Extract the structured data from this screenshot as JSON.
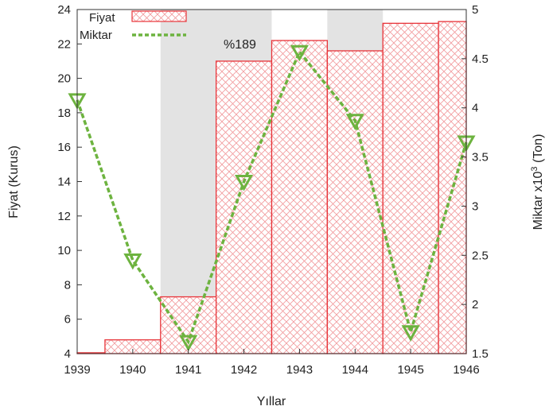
{
  "chart_data": {
    "type": "bar",
    "xlabel": "Yıllar",
    "ylabel": "Fiyat (Kurus)",
    "y2label_prefix": "Miktar x10",
    "y2label_sup": "3",
    "y2label_suffix": " (Ton)",
    "x_ticks": [
      "1939",
      "1940",
      "1941",
      "1942",
      "1943",
      "1944",
      "1945",
      "1946"
    ],
    "ylim": [
      4,
      24
    ],
    "y_ticks": [
      "4",
      "6",
      "8",
      "10",
      "12",
      "14",
      "16",
      "18",
      "20",
      "22",
      "24"
    ],
    "y2lim": [
      1.5,
      5
    ],
    "y2_ticks": [
      "1.5",
      "2",
      "2.5",
      "3",
      "3.5",
      "4",
      "4.5",
      "5"
    ],
    "grid": false,
    "legend_position": "top-left",
    "shaded_x_ranges": [
      [
        1940.5,
        1942.5
      ],
      [
        1943.5,
        1944.5
      ]
    ],
    "annotation": {
      "text": "%189",
      "x": 1942.45,
      "y": 22.5
    },
    "series": [
      {
        "name": "Fiyat",
        "type": "bar",
        "color": "#e8343a",
        "x_start": [
          1939,
          1939.5,
          1940.5,
          1941.5,
          1942.5,
          1943.5,
          1944.5,
          1945.5
        ],
        "x_end": [
          1939.5,
          1940.5,
          1941.5,
          1942.5,
          1943.5,
          1944.5,
          1945.5,
          1946
        ],
        "values": [
          4.05,
          4.8,
          7.3,
          21.0,
          22.2,
          21.6,
          23.2,
          23.3
        ]
      },
      {
        "name": "Miktar",
        "type": "line",
        "axis": "right",
        "color": "#6db33f",
        "x": [
          1939,
          1940,
          1941,
          1942,
          1943,
          1944,
          1945,
          1946
        ],
        "values": [
          4.08,
          2.45,
          1.62,
          3.25,
          4.57,
          3.87,
          1.72,
          3.65
        ]
      }
    ]
  }
}
